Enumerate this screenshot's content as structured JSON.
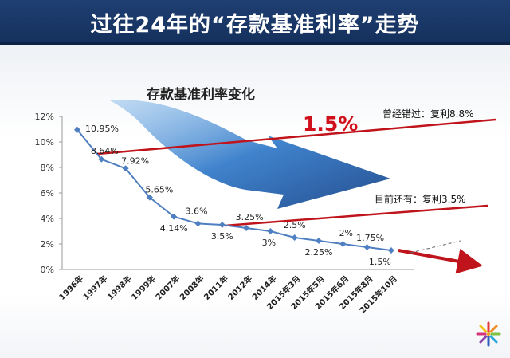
{
  "header": {
    "title": "过往24年的“存款基准利率”走势"
  },
  "colors": {
    "header_bg": "#1a3766",
    "line": "#4f7fc1",
    "red_line": "#c0141c",
    "arrow_blue": "#1f5fb0"
  },
  "icons": {
    "logo": "colorful-flower-logo-icon"
  },
  "chart_data": {
    "type": "line",
    "title": "存款基准利率变化",
    "xlabel": "",
    "ylabel": "",
    "ylim": [
      0,
      12
    ],
    "yticks": [
      "0%",
      "2%",
      "4%",
      "6%",
      "8%",
      "10%",
      "12%"
    ],
    "categories": [
      "1996年",
      "1997年",
      "1998年",
      "1999年",
      "2007年",
      "2008年",
      "2011年",
      "2012年",
      "2014年",
      "2015年3月",
      "2015年5月",
      "2015年6月",
      "2015年8月",
      "2015年10月"
    ],
    "series": [
      {
        "values": [
          10.95,
          8.64,
          7.92,
          5.65,
          4.14,
          3.6,
          3.5,
          3.25,
          3.0,
          2.5,
          2.25,
          2.0,
          1.75,
          1.5
        ],
        "labels": [
          "10.95%",
          "8.64%",
          "7.92%",
          "5.65%",
          "4.14%",
          "3.6%",
          "3.5%",
          "3.25%",
          "3%",
          "2.5%",
          "2.25%",
          "2%",
          "1.75%",
          "1.5%"
        ]
      }
    ],
    "grid": false,
    "annotations": {
      "big_rate": "1.5%",
      "upper_note": "曾经错过：复利8.8%",
      "lower_note": "目前还有：复利3.5%"
    }
  }
}
